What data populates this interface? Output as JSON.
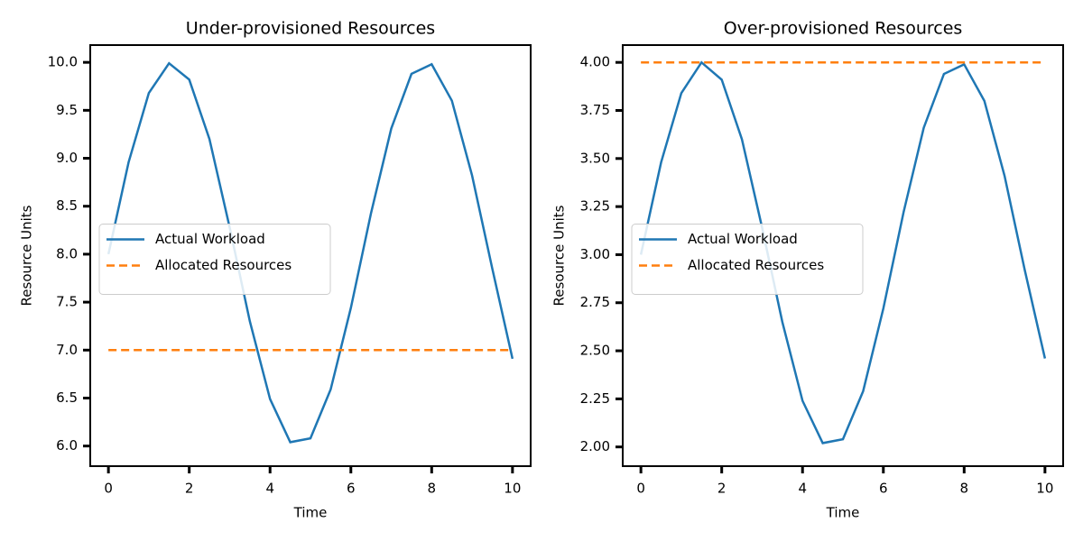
{
  "chart_data": [
    {
      "type": "line",
      "title": "Under-provisioned Resources",
      "x_label": "Time",
      "y_label": "Resource Units",
      "x": [
        0,
        0.5,
        1,
        1.5,
        2,
        2.5,
        3,
        3.5,
        4,
        4.5,
        5,
        5.5,
        6,
        6.5,
        7,
        7.5,
        8,
        8.5,
        9,
        9.5,
        10
      ],
      "series": [
        {
          "name": "Actual Workload",
          "color": "#1f77b4",
          "style": "solid",
          "values": [
            8,
            8.96,
            9.68,
            9.99,
            9.82,
            9.2,
            8.28,
            7.3,
            6.49,
            6.04,
            6.08,
            6.59,
            7.44,
            8.43,
            9.31,
            9.88,
            9.98,
            9.6,
            8.82,
            7.85,
            6.91
          ]
        },
        {
          "name": "Allocated Resources",
          "color": "#ff7f0e",
          "style": "dashed",
          "values": [
            7,
            7,
            7,
            7,
            7,
            7,
            7,
            7,
            7,
            7,
            7,
            7,
            7,
            7,
            7,
            7,
            7,
            7,
            7,
            7,
            7
          ]
        }
      ],
      "xlim": [
        -0.45,
        10.45
      ],
      "xticks": [
        0,
        2,
        4,
        6,
        8,
        10
      ],
      "ylim": [
        5.79,
        10.18
      ],
      "yticks": [
        {
          "value": 6,
          "label": "6.0"
        },
        {
          "value": 6.5,
          "label": "6.5"
        },
        {
          "value": 7,
          "label": "7.0"
        },
        {
          "value": 7.5,
          "label": "7.5"
        },
        {
          "value": 8,
          "label": "8.0"
        },
        {
          "value": 8.5,
          "label": "8.5"
        },
        {
          "value": 9,
          "label": "9.0"
        },
        {
          "value": 9.5,
          "label": "9.5"
        },
        {
          "value": 10,
          "label": "10.0"
        }
      ],
      "grid": false,
      "legend": "center left"
    },
    {
      "type": "line",
      "title": "Over-provisioned Resources",
      "x_label": "Time",
      "y_label": "Resource Units",
      "x": [
        0,
        0.5,
        1,
        1.5,
        2,
        2.5,
        3,
        3.5,
        4,
        4.5,
        5,
        5.5,
        6,
        6.5,
        7,
        7.5,
        8,
        8.5,
        9,
        9.5,
        10
      ],
      "series": [
        {
          "name": "Actual Workload",
          "color": "#1f77b4",
          "style": "solid",
          "values": [
            3,
            3.48,
            3.84,
            4.0,
            3.91,
            3.6,
            3.14,
            2.65,
            2.24,
            2.02,
            2.04,
            2.29,
            2.72,
            3.22,
            3.66,
            3.94,
            3.99,
            3.8,
            3.41,
            2.92,
            2.46
          ]
        },
        {
          "name": "Allocated Resources",
          "color": "#ff7f0e",
          "style": "dashed",
          "values": [
            4,
            4,
            4,
            4,
            4,
            4,
            4,
            4,
            4,
            4,
            4,
            4,
            4,
            4,
            4,
            4,
            4,
            4,
            4,
            4,
            4
          ]
        }
      ],
      "xlim": [
        -0.45,
        10.45
      ],
      "xticks": [
        0,
        2,
        4,
        6,
        8,
        10
      ],
      "ylim": [
        1.9,
        4.09
      ],
      "yticks": [
        {
          "value": 2,
          "label": "2.00"
        },
        {
          "value": 2.25,
          "label": "2.25"
        },
        {
          "value": 2.5,
          "label": "2.50"
        },
        {
          "value": 2.75,
          "label": "2.75"
        },
        {
          "value": 3,
          "label": "3.00"
        },
        {
          "value": 3.25,
          "label": "3.25"
        },
        {
          "value": 3.5,
          "label": "3.50"
        },
        {
          "value": 3.75,
          "label": "3.75"
        },
        {
          "value": 4,
          "label": "4.00"
        }
      ],
      "grid": false,
      "legend": "center left"
    }
  ]
}
